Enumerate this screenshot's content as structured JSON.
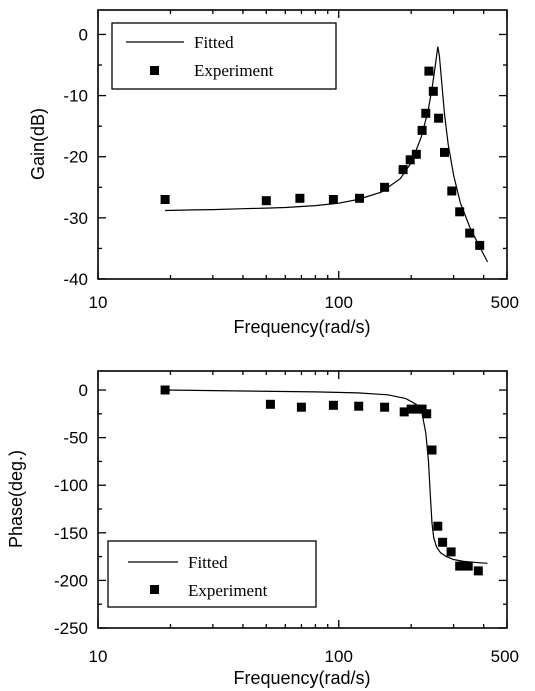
{
  "chart_data": [
    {
      "type": "scatter",
      "title": "",
      "xlabel": "Frequency(rad/s)",
      "ylabel": "Gain(dB)",
      "x_scale": "log",
      "xlim": [
        10,
        500
      ],
      "ylim": [
        -40,
        4
      ],
      "x_tick_values": [
        10,
        100,
        500
      ],
      "x_tick_labels": [
        "10",
        "100",
        "500"
      ],
      "y_tick_values": [
        0,
        -10,
        -20,
        -30,
        -40
      ],
      "y_tick_labels": [
        "0",
        "-10",
        "-20",
        "-30",
        "-40"
      ],
      "legend": {
        "position": "top-left",
        "entries": [
          "Fitted",
          "Experiment"
        ]
      },
      "series": [
        {
          "name": "Fitted",
          "style": "line",
          "x": [
            19,
            25,
            30,
            40,
            50,
            60,
            80,
            100,
            120,
            150,
            180,
            200,
            220,
            235,
            245,
            252,
            258,
            262,
            268,
            275,
            285,
            300,
            320,
            350,
            380,
            415
          ],
          "y": [
            -28.8,
            -28.7,
            -28.65,
            -28.5,
            -28.4,
            -28.3,
            -28.0,
            -27.6,
            -27.0,
            -25.8,
            -23.6,
            -21.0,
            -16.8,
            -12.5,
            -8.4,
            -5.0,
            -2.0,
            -3.5,
            -8.0,
            -13.0,
            -18.0,
            -23.0,
            -27.5,
            -31.5,
            -34.3,
            -37.2
          ]
        },
        {
          "name": "Experiment",
          "style": "markers",
          "x": [
            19,
            50,
            69,
            95,
            122,
            155,
            185,
            198,
            210,
            222,
            230,
            237,
            247,
            260,
            275,
            295,
            318,
            350,
            385
          ],
          "y": [
            -27.0,
            -27.2,
            -26.8,
            -27.0,
            -26.8,
            -25.0,
            -22.1,
            -20.5,
            -19.6,
            -15.7,
            -12.9,
            -6.0,
            -9.3,
            -13.7,
            -19.3,
            -25.6,
            -29.0,
            -32.5,
            -34.5
          ]
        }
      ]
    },
    {
      "type": "scatter",
      "title": "",
      "xlabel": "Frequency(rad/s)",
      "ylabel": "Phase(deg.)",
      "x_scale": "log",
      "xlim": [
        10,
        500
      ],
      "ylim": [
        -250,
        20
      ],
      "x_tick_values": [
        10,
        100,
        500
      ],
      "x_tick_labels": [
        "10",
        "100",
        "500"
      ],
      "y_tick_values": [
        0,
        -50,
        -100,
        -150,
        -200,
        -250
      ],
      "y_tick_labels": [
        "0",
        "-50",
        "-100",
        "-150",
        "-200",
        "-250"
      ],
      "legend": {
        "position": "bottom-left",
        "entries": [
          "Fitted",
          "Experiment"
        ]
      },
      "series": [
        {
          "name": "Fitted",
          "style": "line",
          "x": [
            19,
            40,
            80,
            120,
            160,
            190,
            210,
            222,
            230,
            236,
            240,
            244,
            248,
            255,
            265,
            280,
            300,
            330,
            365,
            415
          ],
          "y": [
            0,
            -1,
            -2,
            -3,
            -5,
            -9,
            -15,
            -25,
            -45,
            -75,
            -110,
            -140,
            -155,
            -165,
            -171,
            -175,
            -178,
            -180,
            -181,
            -182
          ]
        },
        {
          "name": "Experiment",
          "style": "markers",
          "x": [
            19,
            52,
            70,
            95,
            121,
            155,
            187,
            200,
            212,
            222,
            232,
            244,
            258,
            270,
            293,
            318,
            345,
            380
          ],
          "y": [
            0,
            -15,
            -18,
            -16,
            -17,
            -18,
            -23,
            -20,
            -20,
            -20,
            -25,
            -63,
            -143,
            -160,
            -170,
            -185,
            -185,
            -190
          ]
        }
      ]
    }
  ]
}
